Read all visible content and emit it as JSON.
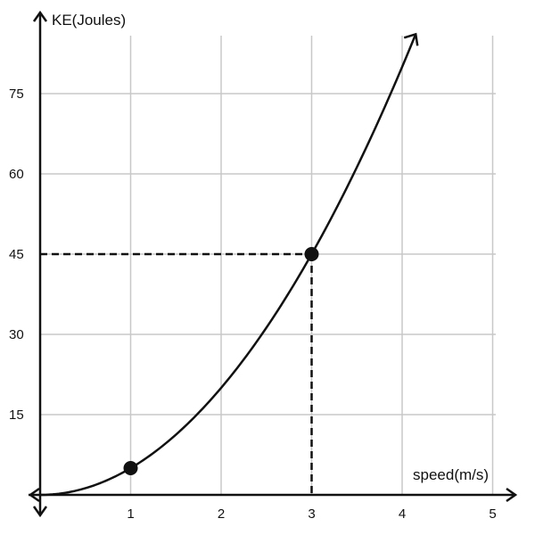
{
  "chart_data": {
    "type": "line",
    "xlabel": "speed(m/s)",
    "ylabel": "KE(Joules)",
    "xlim": [
      0,
      5
    ],
    "ylim": [
      0,
      90
    ],
    "grid": true,
    "x_ticks": [
      "1",
      "2",
      "3",
      "4",
      "5"
    ],
    "y_ticks": [
      "15",
      "30",
      "45",
      "60",
      "75"
    ],
    "series": [
      {
        "function": "KE = 5 * v^2",
        "x": [
          0,
          0.5,
          1,
          1.5,
          2,
          2.5,
          3,
          3.5,
          4,
          4.15
        ],
        "y": [
          0,
          1.25,
          5,
          11.25,
          20,
          31.25,
          45,
          61.25,
          80,
          86.1
        ]
      }
    ],
    "highlighted_points": [
      {
        "x": 1,
        "y": 5
      },
      {
        "x": 3,
        "y": 45
      }
    ],
    "reference_lines": [
      {
        "from": [
          0,
          45
        ],
        "to": [
          3,
          45
        ],
        "style": "dashed"
      },
      {
        "from": [
          3,
          45
        ],
        "to": [
          3,
          0
        ],
        "style": "dashed"
      }
    ]
  }
}
